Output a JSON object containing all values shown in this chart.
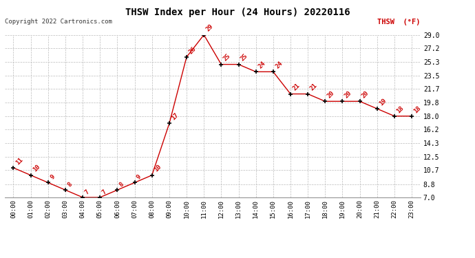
{
  "title": "THSW Index per Hour (24 Hours) 20220116",
  "copyright": "Copyright 2022 Cartronics.com",
  "legend_label": "THSW  (°F)",
  "hours": [
    0,
    1,
    2,
    3,
    4,
    5,
    6,
    7,
    8,
    9,
    10,
    11,
    12,
    13,
    14,
    15,
    16,
    17,
    18,
    19,
    20,
    21,
    22,
    23
  ],
  "values": [
    11,
    10,
    9,
    8,
    7,
    7,
    8,
    9,
    10,
    17,
    26,
    29,
    25,
    25,
    24,
    24,
    21,
    21,
    20,
    20,
    20,
    19,
    18,
    18
  ],
  "line_color": "#cc0000",
  "marker_color": "#000000",
  "label_color": "#cc0000",
  "background_color": "#ffffff",
  "grid_color": "#bbbbbb",
  "yticks": [
    7.0,
    8.8,
    10.7,
    12.5,
    14.3,
    16.2,
    18.0,
    19.8,
    21.7,
    23.5,
    25.3,
    27.2,
    29.0
  ],
  "ylim": [
    7.0,
    29.0
  ],
  "xlim": [
    -0.5,
    23.5
  ]
}
